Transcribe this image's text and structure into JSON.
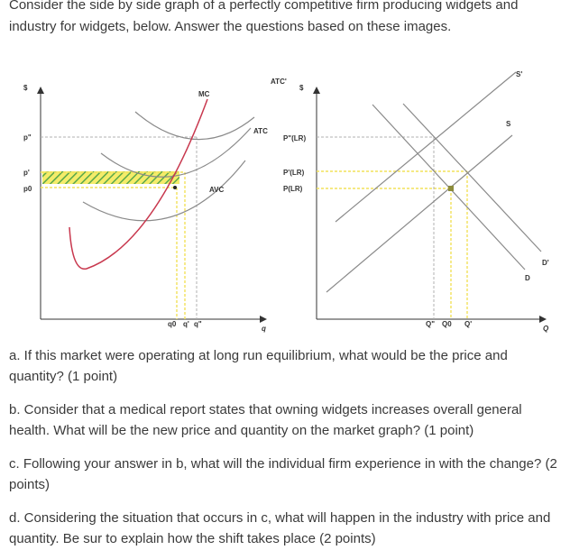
{
  "intro": "Consider the side by side graph of a perfectly competitive firm producing widgets and industry for widgets, below.  Answer the questions based on these images.",
  "diagram": {
    "firm": {
      "y_axis": "$",
      "x_axis": "q",
      "price_levels": [
        "p\"",
        "p'",
        "p0"
      ],
      "quantity_levels": [
        "q0",
        "q'",
        "q\""
      ],
      "curves": [
        "MC",
        "ATC",
        "AVC",
        "ATC'"
      ]
    },
    "market": {
      "y_axis": "$",
      "x_axis": "Q",
      "price_levels": [
        "P\"(LR)",
        "P'(LR)",
        "P(LR)"
      ],
      "quantity_levels": [
        "Q\"",
        "Q0",
        "Q'"
      ],
      "curves": [
        "S'",
        "S",
        "D",
        "D'"
      ]
    }
  },
  "questions": {
    "a": "a. If this market were operating at long run equilibrium, what would be the price and quantity? (1 point)",
    "b": "b. Consider that a medical report states that owning widgets increases overall general health. What will be the new price and quantity on the market graph? (1 point)",
    "c": "c. Following your answer in b, what will the individual firm experience in with the change? (2 points)",
    "d": "d. Considering the situation that occurs in c, what will happen in the industry with price and quantity.  Be sur to explain how the shift takes place (2 points)"
  },
  "colors": {
    "mc_curve": "#c8384e",
    "guide_yellow": "#f2e25a",
    "hatch_green": "#5aa84a",
    "curve_gray": "#8a8a8a"
  }
}
